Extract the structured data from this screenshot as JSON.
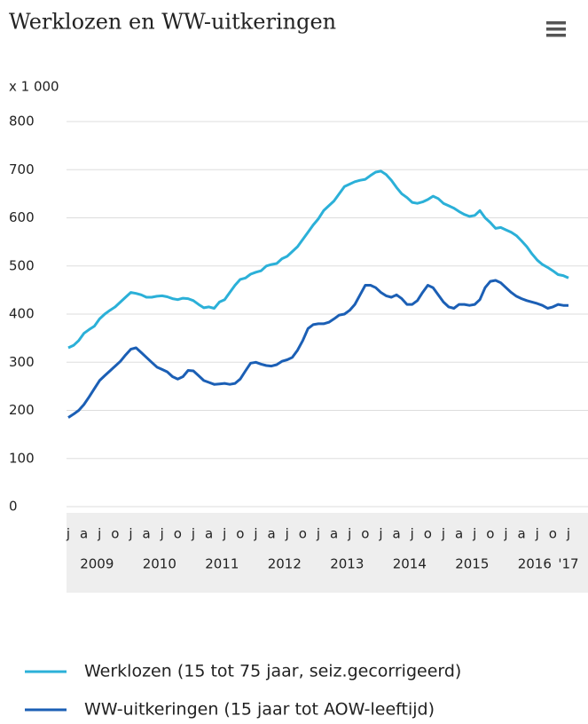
{
  "chart_data": {
    "type": "line",
    "title": "Werklozen en WW-uitkeringen",
    "unit_label": "x 1 000",
    "categories": [
      "j",
      null,
      null,
      "a",
      null,
      null,
      "j",
      null,
      null,
      "o",
      null,
      null,
      "j",
      null,
      null,
      "a",
      null,
      null,
      "j",
      null,
      null,
      "o",
      null,
      null,
      "j",
      null,
      null,
      "a",
      null,
      null,
      "j",
      null,
      null,
      "o",
      null,
      null,
      "j",
      null,
      null,
      "a",
      null,
      null,
      "j",
      null,
      null,
      "o",
      null,
      null,
      "j",
      null,
      null,
      "a",
      null,
      null,
      "j",
      null,
      null,
      "o",
      null,
      null,
      "j",
      null,
      null,
      "a",
      null,
      null,
      "j",
      null,
      null,
      "o",
      null,
      null,
      "j",
      null,
      null,
      "a",
      null,
      null,
      "j",
      null,
      null,
      "o",
      null,
      null,
      "j",
      null,
      null,
      "a",
      null,
      null,
      "j",
      null,
      null,
      "o",
      null,
      null,
      "j"
    ],
    "year_labels": [
      "2009",
      "2010",
      "2011",
      "2012",
      "2013",
      "2014",
      "2015",
      "2016",
      "'17"
    ],
    "series": [
      {
        "name": "Werklozen (15 tot 75 jaar, seiz.gecorrigeerd)",
        "color": "#2bb0d8",
        "values": [
          330,
          335,
          345,
          360,
          368,
          375,
          390,
          400,
          408,
          415,
          425,
          435,
          445,
          443,
          440,
          435,
          435,
          437,
          438,
          436,
          432,
          430,
          433,
          432,
          428,
          420,
          413,
          415,
          412,
          425,
          430,
          445,
          460,
          472,
          475,
          483,
          487,
          490,
          500,
          503,
          505,
          515,
          520,
          530,
          540,
          555,
          570,
          585,
          598,
          615,
          625,
          635,
          650,
          665,
          670,
          675,
          678,
          680,
          688,
          695,
          697,
          690,
          678,
          663,
          650,
          642,
          632,
          630,
          633,
          638,
          645,
          640,
          630,
          625,
          620,
          613,
          607,
          603,
          605,
          615,
          600,
          590,
          578,
          580,
          575,
          570,
          563,
          552,
          540,
          525,
          512,
          503,
          497,
          490,
          482,
          480,
          475
        ]
      },
      {
        "name": "WW-uitkeringen (15 jaar tot AOW-leeftijd)",
        "color": "#1b5fb5",
        "values": [
          185,
          192,
          200,
          212,
          228,
          245,
          262,
          272,
          282,
          292,
          302,
          315,
          327,
          330,
          320,
          310,
          300,
          290,
          285,
          280,
          270,
          265,
          270,
          283,
          282,
          272,
          262,
          258,
          254,
          255,
          256,
          254,
          256,
          265,
          282,
          298,
          300,
          296,
          293,
          292,
          295,
          302,
          305,
          310,
          325,
          345,
          370,
          378,
          380,
          380,
          383,
          390,
          398,
          400,
          408,
          420,
          440,
          460,
          460,
          455,
          445,
          438,
          435,
          440,
          432,
          420,
          420,
          428,
          445,
          460,
          455,
          440,
          425,
          415,
          412,
          420,
          420,
          418,
          420,
          430,
          455,
          468,
          470,
          465,
          455,
          445,
          437,
          432,
          428,
          425,
          422,
          418,
          412,
          415,
          420,
          418,
          418
        ]
      }
    ],
    "ylim": [
      0,
      800
    ],
    "yticks": [
      0,
      100,
      200,
      300,
      400,
      500,
      600,
      700,
      800
    ],
    "grid": true
  }
}
